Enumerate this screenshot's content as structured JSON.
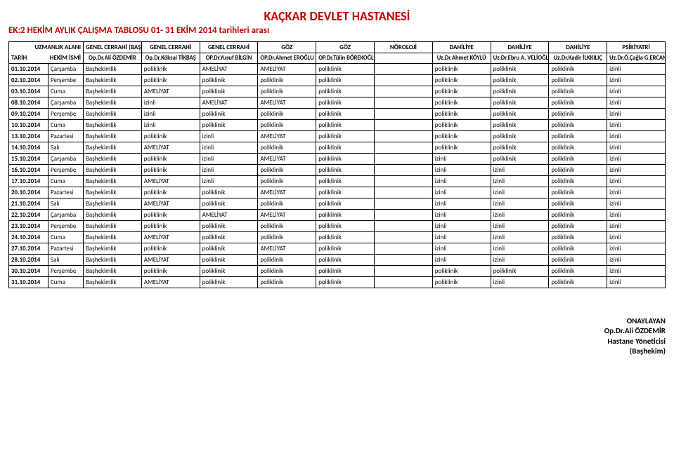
{
  "titles": {
    "hospital": "KAÇKAR DEVLET HASTANESİ",
    "subtitle": "EK:2 HEKİM AYLIK ÇALIŞMA TABLOSU  01- 31  EKİM  2014  tarihleri arası"
  },
  "header": {
    "corner_top": "UZMANLIK ALANI",
    "corner_mid": "TARİH",
    "corner_bottom": "HEKİM İSMİ",
    "specialties": [
      "GENEL CERRAHİ (BAŞHEKİM)",
      "GENEL CERRAHİ",
      "GENEL CERRAHİ",
      "GÖZ",
      "GÖZ",
      "NÖROLOJİ",
      "DAHİLİYE",
      "DAHİLİYE",
      "DAHİLİYE",
      "PSİKİYATRİ"
    ],
    "doctors": [
      "Op.Dr.Ali ÖZDEMİR",
      "Op.Dr.Köksal TİKBAŞ",
      "OP.Dr.Yusuf BİLGİN",
      "OP.Dr.Ahmet EROĞLU",
      "OP.Dr.Tülin BÖREKOĞLU",
      "",
      "Uz.Dr.Ahmet KÖYLÜ",
      "Uz.Dr.Ebru A. VELİOĞLU",
      "Uz.Dr.Kadir İLKKILIÇ",
      "Uz.Dr.Ö.Çağla G.ERCAN"
    ]
  },
  "rows": [
    {
      "date": "01.10.2014",
      "day": "Çarşamba",
      "cells": [
        "Başhekimlik",
        "poliklinik",
        "AMELİYAT",
        "AMELİYAT",
        "poliklinik",
        "",
        "poliklinik",
        "poliklinik",
        "poliklinik",
        "izinli"
      ]
    },
    {
      "date": "02.10.2014",
      "day": "Perşembe",
      "cells": [
        "Başhekimlik",
        "poliklinik",
        "poliklinik",
        "poliklinik",
        "poliklinik",
        "",
        "poliklinik",
        "poliklinik",
        "poliklinik",
        "izinli"
      ]
    },
    {
      "date": "03.10.2014",
      "day": "Cuma",
      "cells": [
        "Başhekimlik",
        "AMELİYAT",
        "poliklinik",
        "poliklinik",
        "poliklinik",
        "",
        "poliklinik",
        "poliklinik",
        "poliklinik",
        "izinli"
      ]
    },
    {
      "date": "08.10.2014",
      "day": "Çarşamba",
      "cells": [
        "Başhekimlik",
        "izinli",
        "AMELİYAT",
        "AMELİYAT",
        "poliklinik",
        "",
        "poliklinik",
        "poliklinik",
        "poliklinik",
        "izinli"
      ]
    },
    {
      "date": "09.10.2014",
      "day": "Perşembe",
      "cells": [
        "Başhekimlik",
        "izinli",
        "poliklinik",
        "poliklinik",
        "poliklinik",
        "",
        "poliklinik",
        "poliklinik",
        "poliklinik",
        "izinli"
      ]
    },
    {
      "date": "10.10.2014",
      "day": "Cuma",
      "cells": [
        "Başhekimlik",
        "izinli",
        "poliklinik",
        "poliklinik",
        "poliklinik",
        "",
        "poliklinik",
        "poliklinik",
        "poliklinik",
        "izinli"
      ]
    },
    {
      "date": "13.10.2014",
      "day": "Pazartesi",
      "cells": [
        "Başhekimlik",
        "poliklinik",
        "izinli",
        "AMELİYAT",
        "poliklinik",
        "",
        "poliklinik",
        "poliklinik",
        "poliklinik",
        "izinli"
      ]
    },
    {
      "date": "14.10.2014",
      "day": "Salı",
      "cells": [
        "Başhekimlik",
        "AMELİYAT",
        "izinli",
        "poliklinik",
        "poliklinik",
        "",
        "poliklinik",
        "poliklinik",
        "poliklinik",
        "izinli"
      ]
    },
    {
      "date": "15.10.2014",
      "day": "Çarşamba",
      "cells": [
        "Başhekimlik",
        "poliklinik",
        "izinli",
        "AMELİYAT",
        "poliklinik",
        "",
        "izinli",
        "poliklinik",
        "poliklinik",
        "izinli"
      ]
    },
    {
      "date": "16.10.2014",
      "day": "Perşembe",
      "cells": [
        "Başhekimlik",
        "poliklinik",
        "izinli",
        "poliklinik",
        "poliklinik",
        "",
        "izinli",
        "izinli",
        "poliklinik",
        "izinli"
      ]
    },
    {
      "date": "17.10.2014",
      "day": "Cuma",
      "cells": [
        "Başhekimlik",
        "AMELİYAT",
        "izinli",
        "poliklinik",
        "poliklinik",
        "",
        "izinli",
        "izinli",
        "poliklinik",
        "izinli"
      ]
    },
    {
      "date": "20.10.2014",
      "day": "Pazartesi",
      "cells": [
        "Başhekimlik",
        "poliklinik",
        "poliklinik",
        "AMELİYAT",
        "poliklinik",
        "",
        "izinli",
        "izinli",
        "poliklinik",
        "izinli"
      ]
    },
    {
      "date": "21.10.2014",
      "day": "Salı",
      "cells": [
        "Başhekimlik",
        "AMELİYAT",
        "poliklinik",
        "poliklinik",
        "poliklinik",
        "",
        "izinli",
        "izinli",
        "poliklinik",
        "izinli"
      ]
    },
    {
      "date": "22.10.2014",
      "day": "Çarşamba",
      "cells": [
        "Başhekimlik",
        "poliklinik",
        "AMELİYAT",
        "AMELİYAT",
        "poliklinik",
        "",
        "izinli",
        "izinli",
        "poliklinik",
        "izinli"
      ]
    },
    {
      "date": "23.10.2014",
      "day": "Perşembe",
      "cells": [
        "Başhekimlik",
        "poliklinik",
        "poliklinik",
        "poliklinik",
        "poliklinik",
        "",
        "izinli",
        "izinli",
        "poliklinik",
        "izinli"
      ]
    },
    {
      "date": "24.10.2014",
      "day": "Cuma",
      "cells": [
        "Başhekimlik",
        "AMELİYAT",
        "poliklinik",
        "poliklinik",
        "poliklinik",
        "",
        "izinli",
        "izinli",
        "poliklinik",
        "izinli"
      ]
    },
    {
      "date": "27.10.2014",
      "day": "Pazartesi",
      "cells": [
        "Başhekimlik",
        "poliklinik",
        "poliklinik",
        "AMELİYAT",
        "poliklinik",
        "",
        "izinli",
        "izinli",
        "poliklinik",
        "izinli"
      ]
    },
    {
      "date": "28.10.2014",
      "day": "Salı",
      "cells": [
        "Başhekimlik",
        "AMELİYAT",
        "poliklinik",
        "poliklinik",
        "poliklinik",
        "",
        "izinli",
        "izinli",
        "poliklinik",
        "izinli"
      ]
    },
    {
      "date": "30.10.2014",
      "day": "Perşembe",
      "cells": [
        "Başhekimlik",
        "poliklinik",
        "poliklinik",
        "poliklinik",
        "poliklinik",
        "",
        "poliklinik",
        "poliklinik",
        "poliklinik",
        "izinli"
      ]
    },
    {
      "date": "31.10.2014",
      "day": "Cuma",
      "cells": [
        "Başhekimlik",
        "AMELİYAT",
        "poliklinik",
        "poliklinik",
        "poliklinik",
        "",
        "poliklinik",
        "izinli",
        "poliklinik",
        "izinli"
      ]
    }
  ],
  "footer": {
    "line1": "ONAYLAYAN",
    "line2": "Op.Dr.Ali ÖZDEMİR",
    "line3": "Hastane Yöneticisi",
    "line4": "(Başhekim)"
  },
  "style": {
    "title_color": "#c00000",
    "border_color": "#000000",
    "background": "#ffffff",
    "font_family": "Calibri, Arial, sans-serif"
  }
}
